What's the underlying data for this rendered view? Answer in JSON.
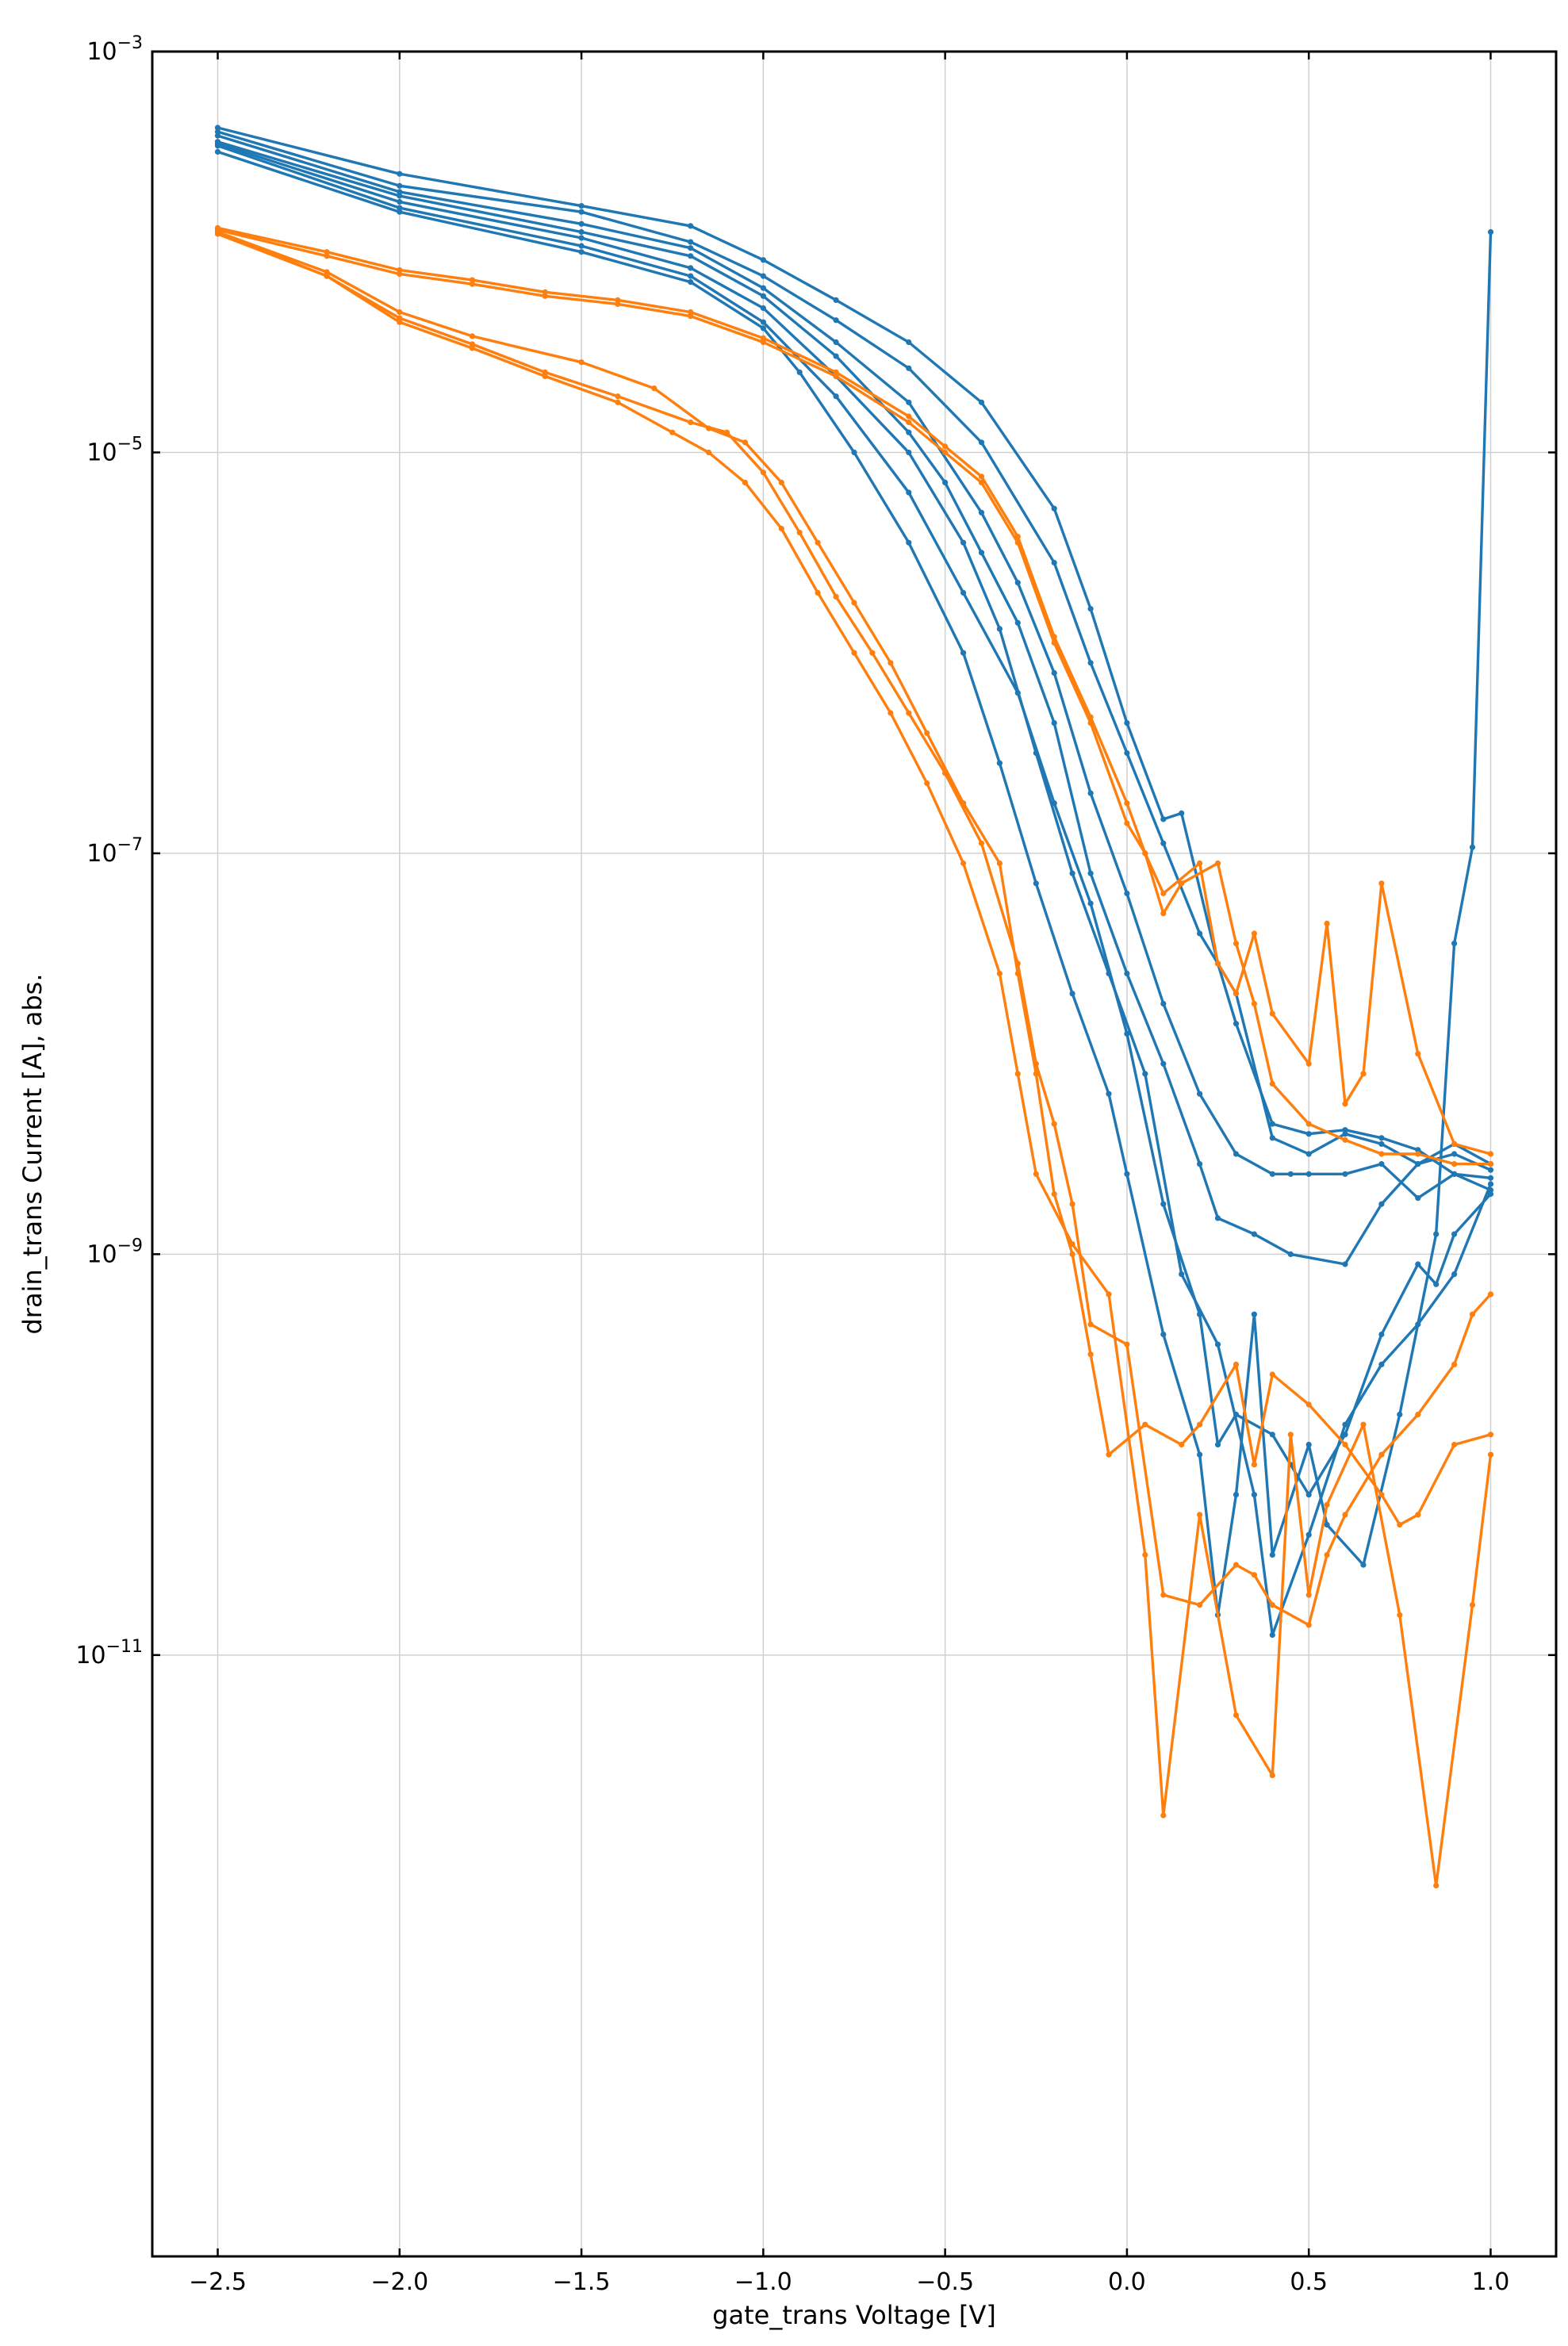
{
  "chart_data": {
    "type": "line",
    "title": "",
    "xlabel": "gate_trans Voltage [V]",
    "ylabel": "drain_trans Current [A], abs.",
    "xlim": [
      -2.68,
      1.18
    ],
    "ylog_lim": [
      -14.0,
      -3.0
    ],
    "yscale": "log",
    "grid": true,
    "x_ticks": [
      {
        "value": -2.5,
        "label": "−2.5"
      },
      {
        "value": -2.0,
        "label": "−2.0"
      },
      {
        "value": -1.5,
        "label": "−1.5"
      },
      {
        "value": -1.0,
        "label": "−1.0"
      },
      {
        "value": -0.5,
        "label": "−0.5"
      },
      {
        "value": 0.0,
        "label": "0.0"
      },
      {
        "value": 0.5,
        "label": "0.5"
      },
      {
        "value": 1.0,
        "label": "1.0"
      }
    ],
    "y_ticks": [
      {
        "exp": -3,
        "base": "10",
        "sup": "−3"
      },
      {
        "exp": -5,
        "base": "10",
        "sup": "−5"
      },
      {
        "exp": -7,
        "base": "10",
        "sup": "−7"
      },
      {
        "exp": -9,
        "base": "10",
        "sup": "−9"
      },
      {
        "exp": -11,
        "base": "10",
        "sup": "−11"
      }
    ],
    "colors": {
      "blue": "#1f77b4",
      "orange": "#ff7f0e"
    },
    "series": [
      {
        "color": "#1f77b4",
        "x": [
          -2.5,
          -2.0,
          -1.5,
          -1.2,
          -1.0,
          -0.8,
          -0.6,
          -0.4,
          -0.2,
          -0.1,
          0.0,
          0.1,
          0.15,
          0.25,
          0.3,
          0.4,
          0.5,
          0.6,
          0.7,
          0.8,
          0.9,
          1.0
        ],
        "log10y": [
          -3.38,
          -3.61,
          -3.77,
          -3.87,
          -4.04,
          -4.24,
          -4.45,
          -4.75,
          -5.28,
          -5.78,
          -6.35,
          -6.83,
          -6.8,
          -7.55,
          -7.85,
          -8.35,
          -8.4,
          -8.38,
          -8.42,
          -8.48,
          -8.6,
          -8.68
        ]
      },
      {
        "color": "#1f77b4",
        "x": [
          -2.5,
          -2.0,
          -1.5,
          -1.2,
          -1.0,
          -0.8,
          -0.6,
          -0.4,
          -0.2,
          -0.1,
          0.0,
          0.1,
          0.2,
          0.3,
          0.4,
          0.5,
          0.6,
          0.7,
          0.8,
          0.9,
          1.0
        ],
        "log10y": [
          -3.4,
          -3.67,
          -3.8,
          -3.95,
          -4.12,
          -4.34,
          -4.58,
          -4.95,
          -5.55,
          -6.05,
          -6.5,
          -6.95,
          -7.4,
          -7.7,
          -8.42,
          -8.5,
          -8.4,
          -8.45,
          -8.55,
          -8.5,
          -8.58
        ]
      },
      {
        "color": "#1f77b4",
        "x": [
          -2.5,
          -2.0,
          -1.5,
          -1.2,
          -1.0,
          -0.8,
          -0.6,
          -0.4,
          -0.3,
          -0.2,
          -0.1,
          0.0,
          0.1,
          0.2,
          0.3,
          0.4,
          0.45,
          0.5,
          0.6,
          0.7,
          0.8,
          0.9,
          1.0
        ],
        "log10y": [
          -3.42,
          -3.7,
          -3.86,
          -3.98,
          -4.18,
          -4.45,
          -4.75,
          -5.3,
          -5.65,
          -6.1,
          -6.7,
          -7.2,
          -7.75,
          -8.2,
          -8.5,
          -8.6,
          -8.6,
          -8.6,
          -8.6,
          -8.55,
          -8.72,
          -8.6,
          -8.62
        ]
      },
      {
        "color": "#1f77b4",
        "x": [
          -2.5,
          -2.0,
          -1.5,
          -1.2,
          -1.0,
          -0.8,
          -0.6,
          -0.5,
          -0.4,
          -0.3,
          -0.2,
          -0.1,
          0.0,
          0.1,
          0.2,
          0.25,
          0.35,
          0.45,
          0.6,
          0.7,
          0.8,
          0.9,
          1.0
        ],
        "log10y": [
          -3.45,
          -3.72,
          -3.9,
          -4.02,
          -4.22,
          -4.52,
          -4.9,
          -5.15,
          -5.5,
          -5.85,
          -6.35,
          -7.1,
          -7.6,
          -8.05,
          -8.55,
          -8.82,
          -8.9,
          -9.0,
          -9.05,
          -8.75,
          -8.55,
          -8.45,
          -8.55
        ]
      },
      {
        "color": "#1f77b4",
        "x": [
          -2.5,
          -2.0,
          -1.5,
          -1.2,
          -1.0,
          -0.8,
          -0.6,
          -0.45,
          -0.35,
          -0.25,
          -0.15,
          -0.05,
          0.05,
          0.15,
          0.25,
          0.35,
          0.4,
          0.5,
          0.6,
          0.7,
          0.8,
          0.9,
          1.0
        ],
        "log10y": [
          -3.46,
          -3.75,
          -3.93,
          -4.08,
          -4.28,
          -4.62,
          -5.0,
          -5.45,
          -5.88,
          -6.5,
          -7.1,
          -7.6,
          -8.1,
          -9.1,
          -9.45,
          -10.2,
          -10.9,
          -10.4,
          -9.85,
          -9.55,
          -9.35,
          -9.1,
          -8.65
        ]
      },
      {
        "color": "#1f77b4",
        "x": [
          -2.5,
          -2.0,
          -1.5,
          -1.2,
          -1.0,
          -0.8,
          -0.6,
          -0.45,
          -0.3,
          -0.2,
          -0.1,
          0.0,
          0.1,
          0.2,
          0.25,
          0.3,
          0.4,
          0.45,
          0.5,
          0.6,
          0.7,
          0.8,
          0.85,
          0.9,
          1.0
        ],
        "log10y": [
          -3.47,
          -3.78,
          -3.97,
          -4.12,
          -4.35,
          -4.72,
          -5.2,
          -5.7,
          -6.2,
          -6.75,
          -7.25,
          -7.9,
          -8.75,
          -9.3,
          -9.95,
          -9.8,
          -9.9,
          -10.05,
          -10.2,
          -9.9,
          -9.4,
          -9.05,
          -9.15,
          -8.9,
          -8.7
        ]
      },
      {
        "color": "#1f77b4",
        "x": [
          -2.5,
          -2.0,
          -1.5,
          -1.2,
          -1.0,
          -0.9,
          -0.75,
          -0.6,
          -0.45,
          -0.35,
          -0.25,
          -0.15,
          -0.05,
          0.0,
          0.1,
          0.2,
          0.25,
          0.3,
          0.35,
          0.4,
          0.5,
          0.55,
          0.65,
          0.75,
          0.85,
          0.9,
          0.95,
          1.0
        ],
        "log10y": [
          -3.5,
          -3.8,
          -4.0,
          -4.15,
          -4.38,
          -4.6,
          -5.0,
          -5.45,
          -6.0,
          -6.55,
          -7.15,
          -7.7,
          -8.2,
          -8.6,
          -9.4,
          -10.0,
          -10.8,
          -10.2,
          -9.3,
          -10.5,
          -9.95,
          -10.35,
          -10.55,
          -9.8,
          -8.9,
          -7.45,
          -6.97,
          -3.9
        ]
      },
      {
        "color": "#ff7f0e",
        "x": [
          -2.5,
          -2.2,
          -2.0,
          -1.8,
          -1.6,
          -1.4,
          -1.2,
          -1.0,
          -0.8,
          -0.6,
          -0.5,
          -0.4,
          -0.3,
          -0.2,
          -0.1,
          0.0,
          0.05,
          0.1,
          0.15,
          0.25,
          0.3,
          0.35,
          0.4,
          0.5,
          0.6,
          0.7,
          0.8,
          0.9,
          1.0
        ],
        "log10y": [
          -3.88,
          -4.0,
          -4.09,
          -4.14,
          -4.2,
          -4.24,
          -4.3,
          -4.43,
          -4.6,
          -4.82,
          -4.97,
          -5.12,
          -5.42,
          -5.92,
          -6.32,
          -6.75,
          -7.0,
          -7.3,
          -7.15,
          -7.05,
          -7.45,
          -7.75,
          -8.15,
          -8.35,
          -8.43,
          -8.5,
          -8.5,
          -8.55,
          -8.55
        ]
      },
      {
        "color": "#ff7f0e",
        "x": [
          -2.5,
          -2.2,
          -2.0,
          -1.8,
          -1.6,
          -1.4,
          -1.2,
          -1.0,
          -0.8,
          -0.6,
          -0.5,
          -0.4,
          -0.3,
          -0.2,
          -0.1,
          0.0,
          0.05,
          0.1,
          0.2,
          0.25,
          0.3,
          0.35,
          0.4,
          0.5,
          0.55,
          0.6,
          0.65,
          0.7,
          0.8,
          0.9,
          1.0
        ],
        "log10y": [
          -3.89,
          -4.02,
          -4.11,
          -4.16,
          -4.22,
          -4.26,
          -4.32,
          -4.45,
          -4.62,
          -4.85,
          -5.0,
          -5.15,
          -5.45,
          -5.95,
          -6.35,
          -6.85,
          -7.0,
          -7.2,
          -7.05,
          -7.55,
          -7.7,
          -7.4,
          -7.8,
          -8.05,
          -7.35,
          -8.25,
          -8.1,
          -7.15,
          -8.0,
          -8.45,
          -8.5
        ]
      },
      {
        "color": "#ff7f0e",
        "x": [
          -2.5,
          -2.2,
          -2.0,
          -1.8,
          -1.5,
          -1.3,
          -1.15,
          -1.05,
          -0.95,
          -0.85,
          -0.75,
          -0.65,
          -0.55,
          -0.45,
          -0.35,
          -0.3,
          -0.25,
          -0.2,
          -0.15,
          -0.1,
          -0.05,
          0.05,
          0.15,
          0.2,
          0.3,
          0.35,
          0.4,
          0.5,
          0.6,
          0.7,
          0.75,
          0.8,
          0.9,
          1.0
        ],
        "log10y": [
          -3.9,
          -4.1,
          -4.3,
          -4.42,
          -4.55,
          -4.68,
          -4.88,
          -4.95,
          -5.15,
          -5.45,
          -5.75,
          -6.05,
          -6.4,
          -6.75,
          -7.05,
          -7.6,
          -8.1,
          -8.7,
          -9.0,
          -9.5,
          -10.0,
          -9.85,
          -9.95,
          -9.85,
          -9.55,
          -10.05,
          -9.6,
          -9.75,
          -9.95,
          -10.2,
          -10.35,
          -10.3,
          -9.95,
          -9.9
        ]
      },
      {
        "color": "#ff7f0e",
        "x": [
          -2.5,
          -2.2,
          -2.0,
          -1.8,
          -1.6,
          -1.4,
          -1.2,
          -1.1,
          -1.0,
          -0.9,
          -0.8,
          -0.7,
          -0.6,
          -0.5,
          -0.4,
          -0.3,
          -0.25,
          -0.2,
          -0.15,
          -0.1,
          0.0,
          0.1,
          0.2,
          0.3,
          0.35,
          0.4,
          0.5,
          0.55,
          0.6,
          0.7,
          0.8,
          0.9,
          0.95,
          1.0
        ],
        "log10y": [
          -3.91,
          -4.12,
          -4.33,
          -4.46,
          -4.6,
          -4.72,
          -4.85,
          -4.9,
          -5.1,
          -5.4,
          -5.72,
          -6.0,
          -6.3,
          -6.6,
          -6.95,
          -7.55,
          -8.05,
          -8.35,
          -8.75,
          -9.35,
          -9.45,
          -10.7,
          -10.75,
          -10.55,
          -10.6,
          -10.75,
          -10.85,
          -10.5,
          -10.3,
          -10.0,
          -9.8,
          -9.55,
          -9.3,
          -9.2
        ]
      },
      {
        "color": "#ff7f0e",
        "x": [
          -2.5,
          -2.2,
          -2.0,
          -1.8,
          -1.6,
          -1.4,
          -1.25,
          -1.15,
          -1.05,
          -0.95,
          -0.85,
          -0.75,
          -0.65,
          -0.55,
          -0.45,
          -0.35,
          -0.3,
          -0.25,
          -0.15,
          -0.05,
          0.05,
          0.1,
          0.2,
          0.3,
          0.4,
          0.45,
          0.5,
          0.55,
          0.65,
          0.75,
          0.85,
          0.95,
          1.0
        ],
        "log10y": [
          -3.9,
          -4.12,
          -4.35,
          -4.48,
          -4.62,
          -4.75,
          -4.9,
          -5.0,
          -5.15,
          -5.38,
          -5.7,
          -6.0,
          -6.3,
          -6.65,
          -7.05,
          -7.6,
          -8.1,
          -8.6,
          -8.95,
          -9.2,
          -10.5,
          -11.8,
          -10.3,
          -11.3,
          -11.6,
          -9.9,
          -10.7,
          -10.25,
          -9.85,
          -10.8,
          -12.15,
          -10.75,
          -10.0
        ]
      }
    ]
  }
}
